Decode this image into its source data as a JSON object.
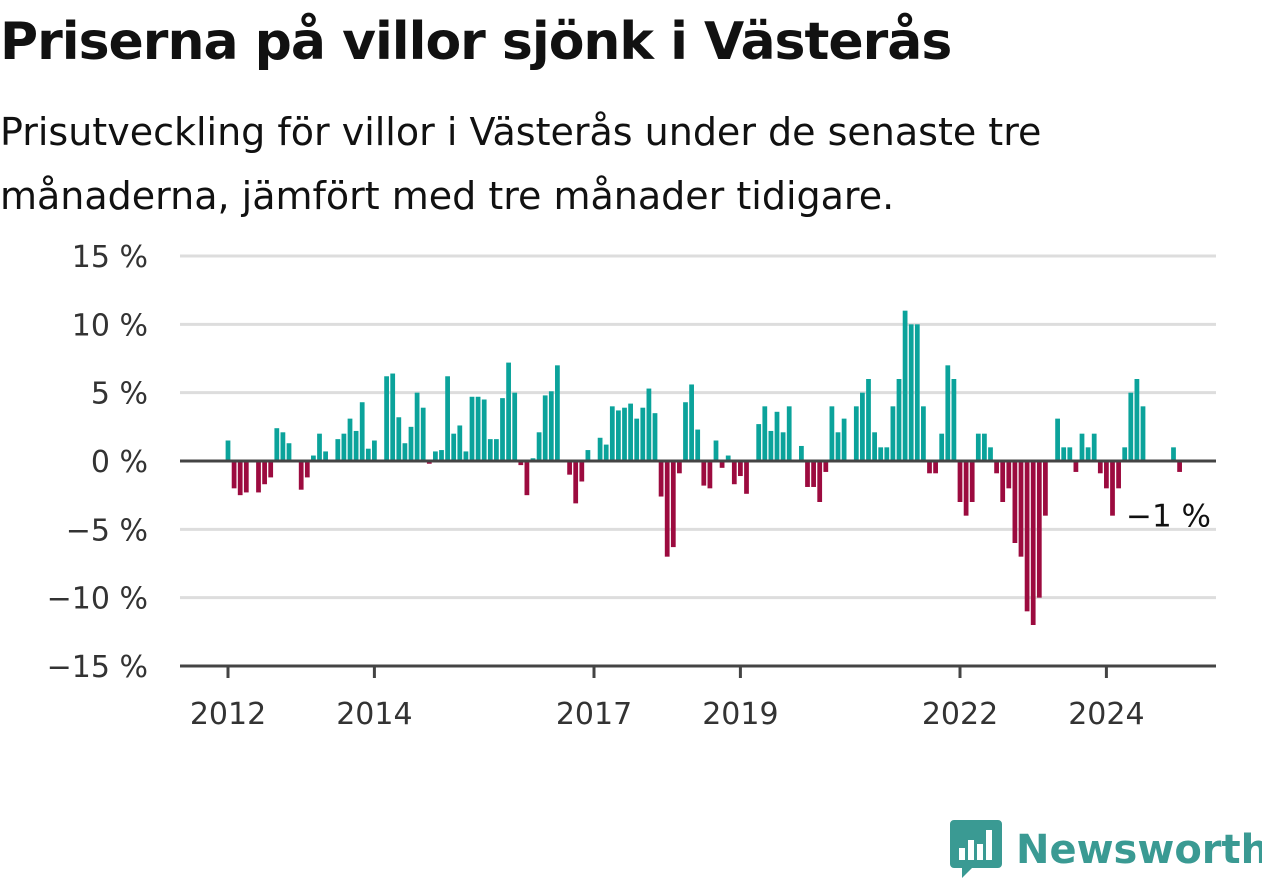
{
  "title": "Priserna på villor sjönk i Västerås",
  "subtitle": "Prisutveckling för villor i Västerås under de senaste tre månaderna, jämfört med tre månader tidigare.",
  "brand": {
    "name": "Newsworthy",
    "icon": "newsworthy-bar-chart-logo-icon"
  },
  "colors": {
    "positive": "#0ba39b",
    "negative": "#9c0b3f",
    "axis": "#444444",
    "grid": "#dddddd"
  },
  "chart_data": {
    "type": "bar",
    "title": "Priserna på villor sjönk i Västerås",
    "ylim": [
      -15,
      15
    ],
    "y_ticks": [
      15,
      10,
      5,
      0,
      -5,
      -10,
      -15
    ],
    "y_tick_labels": [
      "15 %",
      "10 %",
      "5 %",
      "0 %",
      "−5 %",
      "−10 %",
      "−15 %"
    ],
    "x_ticks": [
      2012,
      2014,
      2017,
      2019,
      2022,
      2024
    ],
    "x_tick_labels": [
      "2012",
      "2014",
      "2017",
      "2019",
      "2022",
      "2024"
    ],
    "grid": true,
    "legend": "none",
    "annotation": {
      "text": "−1 %",
      "value": -1
    },
    "x_start": "2012-01",
    "frequency": "monthly",
    "values": [
      1.5,
      -2,
      -2.5,
      -2.3,
      0,
      -2.3,
      -1.7,
      -1.2,
      2.4,
      2.1,
      1.3,
      0,
      -2.1,
      -1.2,
      0.4,
      2,
      0.7,
      0,
      1.6,
      2,
      3.1,
      2.2,
      4.3,
      0.9,
      1.5,
      0,
      6.2,
      6.4,
      3.2,
      1.3,
      2.5,
      5,
      3.9,
      -0.2,
      0.7,
      0.8,
      6.2,
      2,
      2.6,
      0.7,
      4.7,
      4.7,
      4.5,
      1.6,
      1.6,
      4.6,
      7.2,
      5,
      -0.3,
      -2.5,
      0.2,
      2.1,
      4.8,
      5.1,
      7,
      0,
      -1,
      -3.1,
      -1.5,
      0.8,
      0,
      1.7,
      1.2,
      4,
      3.7,
      3.9,
      4.2,
      3.1,
      3.9,
      5.3,
      3.5,
      -2.6,
      -7,
      -6.3,
      -0.9,
      4.3,
      5.6,
      2.3,
      -1.8,
      -2,
      1.5,
      -0.5,
      0.4,
      -1.7,
      -1.1,
      -2.4,
      0,
      2.7,
      4,
      2.2,
      3.6,
      2.1,
      4,
      0,
      1.1,
      -1.9,
      -1.9,
      -3,
      -0.8,
      4,
      2.1,
      3.1,
      0,
      4,
      5,
      6,
      2.1,
      1,
      1,
      4,
      6,
      11,
      10,
      10,
      4,
      -0.9,
      -0.9,
      2,
      7,
      6,
      -3,
      -4,
      -3,
      2,
      2,
      1,
      -0.9,
      -3,
      -2,
      -6,
      -7,
      -11,
      -12,
      -10,
      -4,
      0,
      3.1,
      1,
      1,
      -0.8,
      2,
      1,
      2,
      -0.9,
      -2,
      -4,
      -2,
      1,
      5,
      6,
      4,
      0,
      0,
      0,
      0,
      1,
      -0.8
    ]
  }
}
